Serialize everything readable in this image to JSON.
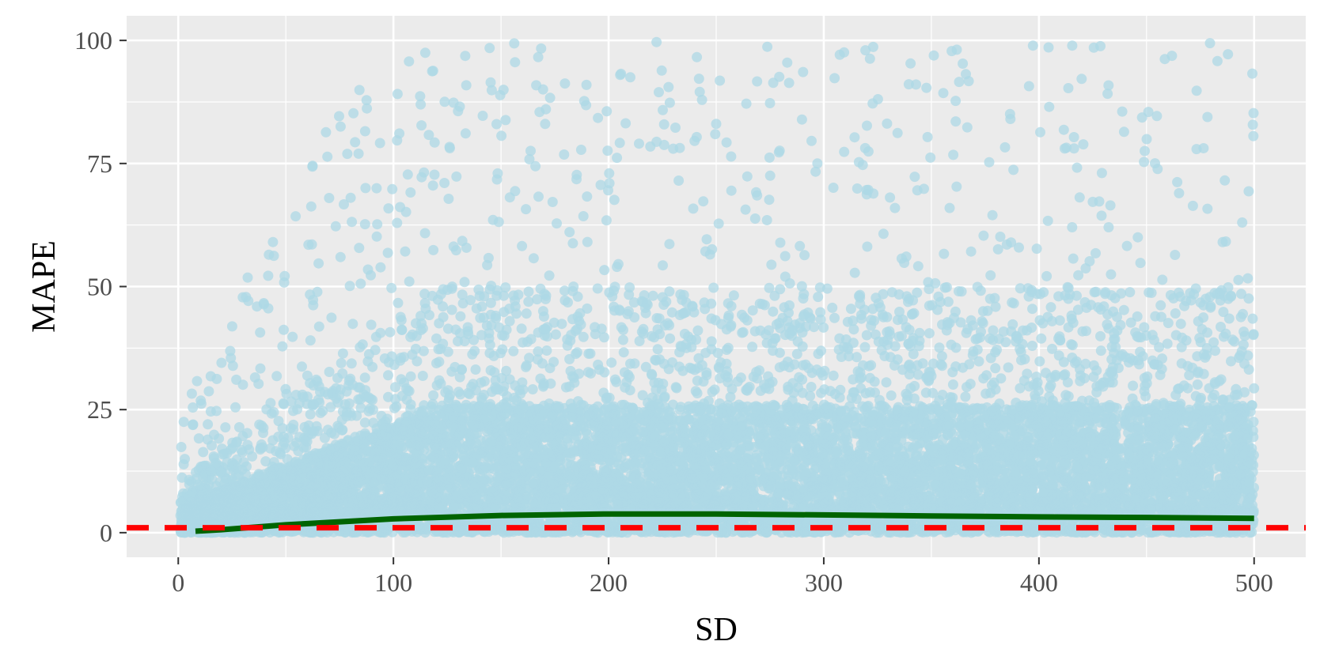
{
  "chart_data": {
    "type": "scatter",
    "title": "",
    "xlabel": "SD",
    "ylabel": "MAPE",
    "xlim": [
      -24,
      524
    ],
    "ylim": [
      -5,
      105
    ],
    "x_ticks": [
      0,
      100,
      200,
      300,
      400,
      500
    ],
    "y_ticks": [
      0,
      25,
      50,
      75,
      100
    ],
    "grid": true,
    "legend": "none",
    "colors": {
      "panel": "#ebebeb",
      "grid": "#ffffff",
      "points": "#add8e6",
      "trend": "#006400",
      "reference": "#ff0000"
    },
    "scatter_summary": {
      "x_range": [
        1,
        500
      ],
      "y_range": [
        0,
        100
      ],
      "description": "dense cloud of points, concentrated between 0 and 25 MAPE, sparser up to 100"
    },
    "series": [
      {
        "kind": "trend_line",
        "x": [
          8,
          20,
          50,
          100,
          150,
          200,
          250,
          300,
          350,
          400,
          450,
          500
        ],
        "y": [
          0.3,
          0.6,
          1.6,
          2.8,
          3.5,
          3.8,
          3.8,
          3.6,
          3.4,
          3.2,
          3.1,
          2.9
        ]
      },
      {
        "kind": "reference_line",
        "y": 1
      }
    ]
  }
}
